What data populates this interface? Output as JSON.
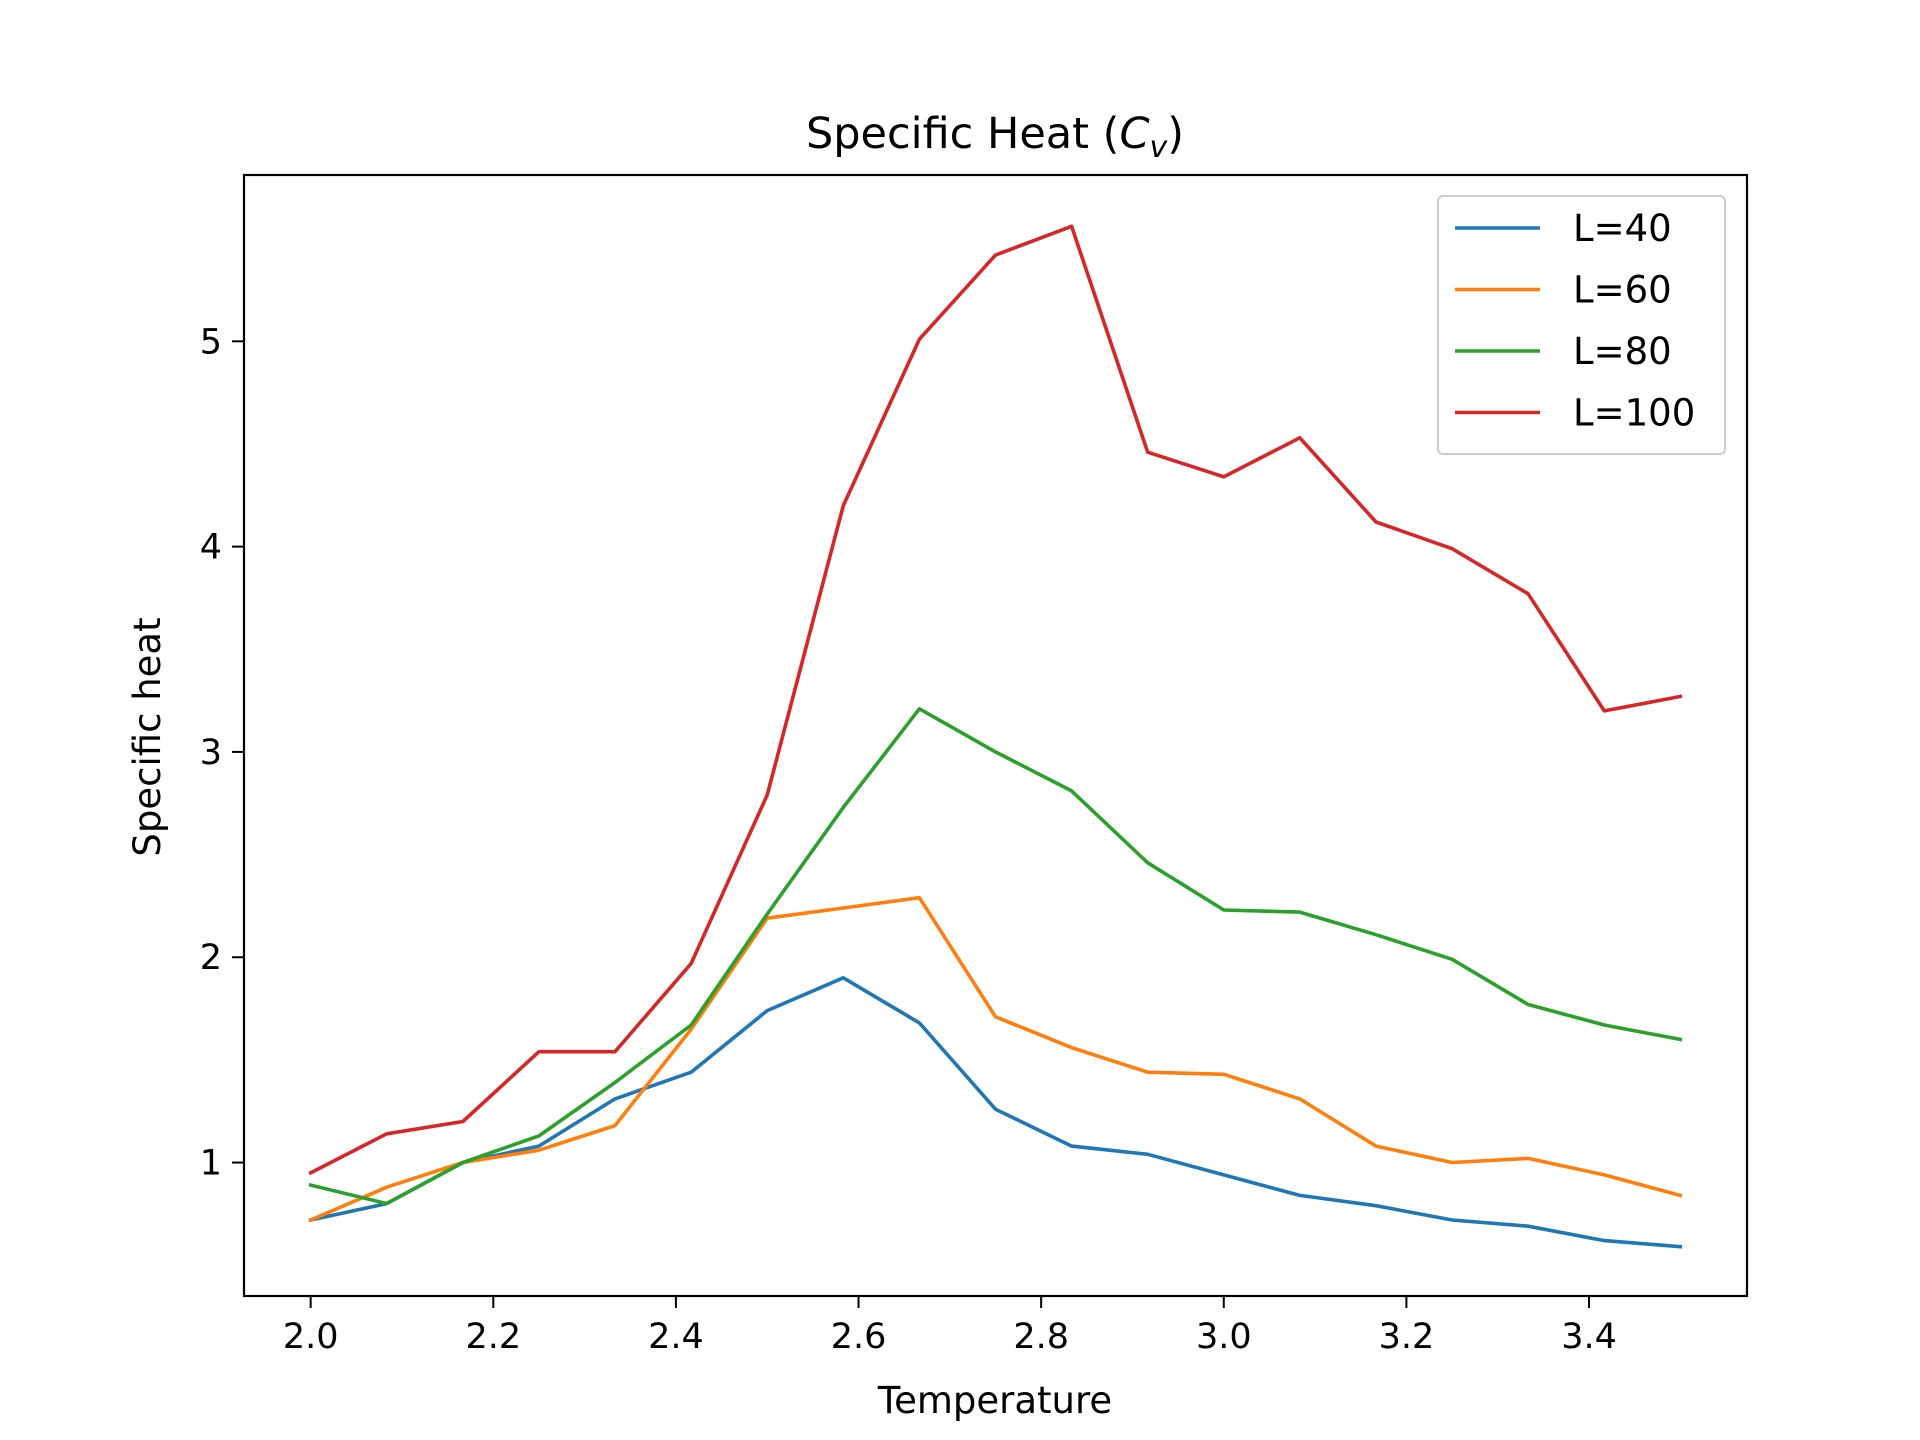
{
  "chart_data": {
    "type": "line",
    "title_main": "Specific Heat (",
    "title_symbol": "C",
    "title_subscript": "v",
    "title_close": ")",
    "xlabel": "Temperature",
    "ylabel": "Specific heat",
    "xlim": [
      1.927,
      3.573
    ],
    "ylim": [
      0.35,
      5.81
    ],
    "xticks": [
      2.0,
      2.2,
      2.4,
      2.6,
      2.8,
      3.0,
      3.2,
      3.4
    ],
    "xtick_labels": [
      "2.0",
      "2.2",
      "2.4",
      "2.6",
      "2.8",
      "3.0",
      "3.2",
      "3.4"
    ],
    "yticks": [
      1,
      2,
      3,
      4,
      5
    ],
    "ytick_labels": [
      "1",
      "2",
      "3",
      "4",
      "5"
    ],
    "grid": false,
    "legend_position": "top-right",
    "x": [
      2.0,
      2.0833,
      2.1667,
      2.25,
      2.3333,
      2.4167,
      2.5,
      2.5833,
      2.6667,
      2.75,
      2.8333,
      2.9167,
      3.0,
      3.0833,
      3.1667,
      3.25,
      3.3333,
      3.4167,
      3.5
    ],
    "series": [
      {
        "name": "L=40",
        "color": "#1f77b4",
        "values": [
          0.72,
          0.8,
          1.0,
          1.08,
          1.31,
          1.44,
          1.74,
          1.9,
          1.68,
          1.26,
          1.08,
          1.04,
          0.94,
          0.84,
          0.79,
          0.72,
          0.69,
          0.62,
          0.59
        ]
      },
      {
        "name": "L=60",
        "color": "#ff7f0e",
        "values": [
          0.72,
          0.88,
          1.0,
          1.06,
          1.18,
          1.65,
          2.19,
          2.24,
          2.29,
          1.71,
          1.56,
          1.44,
          1.43,
          1.31,
          1.08,
          1.0,
          1.02,
          0.94,
          0.84
        ]
      },
      {
        "name": "L=80",
        "color": "#2ca02c",
        "values": [
          0.89,
          0.8,
          1.0,
          1.13,
          1.39,
          1.67,
          2.21,
          2.73,
          3.21,
          3.0,
          2.81,
          2.46,
          2.23,
          2.22,
          2.11,
          1.99,
          1.77,
          1.67,
          1.6
        ]
      },
      {
        "name": "L=100",
        "color": "#d62728",
        "values": [
          0.95,
          1.14,
          1.2,
          1.54,
          1.54,
          1.97,
          2.79,
          4.2,
          5.01,
          5.42,
          5.56,
          4.46,
          4.34,
          4.53,
          4.12,
          3.99,
          3.77,
          3.2,
          3.27
        ]
      }
    ]
  }
}
